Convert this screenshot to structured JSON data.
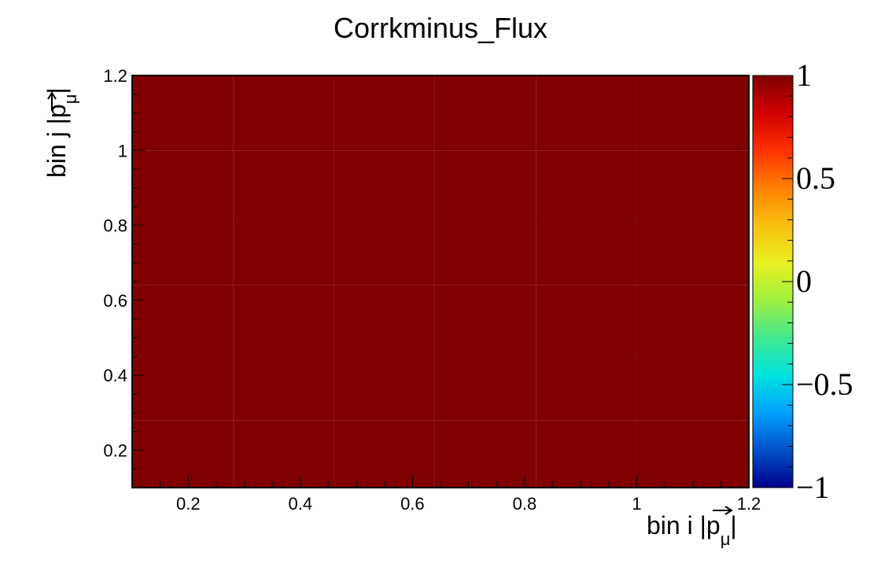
{
  "chart_data": {
    "type": "heatmap",
    "title": "Corrkminus_Flux",
    "xlabel": "bin i |p⃗μ|",
    "ylabel": "bin j |p⃗μ|",
    "x_axis": {
      "label_main": "bin i |",
      "label_p": "p",
      "label_sub": "μ",
      "label_end": "|"
    },
    "y_axis": {
      "label_main": "bin j |",
      "label_p": "p",
      "label_sub": "μ",
      "label_end": "|"
    },
    "xlim": [
      0.1,
      1.2
    ],
    "ylim": [
      0.1,
      1.2
    ],
    "x_tick_labels": [
      "0.2",
      "0.4",
      "0.6",
      "0.8",
      "1",
      "1.2"
    ],
    "y_tick_labels": [
      "0.2",
      "0.4",
      "0.6",
      "0.8",
      "1",
      "1.2"
    ],
    "x_bin_edges": [
      0.1,
      0.28,
      0.46,
      0.64,
      0.82,
      1.0,
      1.2
    ],
    "y_bin_edges": [
      0.1,
      0.28,
      0.46,
      0.64,
      0.82,
      1.0,
      1.2
    ],
    "z_values": [
      [
        1,
        1,
        1,
        1,
        1,
        1
      ],
      [
        1,
        1,
        1,
        1,
        1,
        1
      ],
      [
        1,
        1,
        1,
        1,
        1,
        1
      ],
      [
        1,
        1,
        1,
        1,
        1,
        1
      ],
      [
        1,
        1,
        1,
        1,
        1,
        1
      ],
      [
        1,
        1,
        1,
        1,
        1,
        1
      ]
    ],
    "zlim": [
      -1,
      1
    ],
    "colorbar_tick_labels": [
      "1",
      "0.5",
      "0",
      "−0.5",
      "−1"
    ],
    "colorbar_tick_values": [
      1,
      0.5,
      0,
      -0.5,
      -1
    ],
    "colormap": [
      "#00008b",
      "#0050c8",
      "#00a0ff",
      "#00e4e0",
      "#40e890",
      "#a0f040",
      "#e8f020",
      "#f8c010",
      "#ff8000",
      "#ff3000",
      "#d00000",
      "#800000"
    ],
    "cell_color": "#800000",
    "grid": false,
    "legend": "none"
  }
}
